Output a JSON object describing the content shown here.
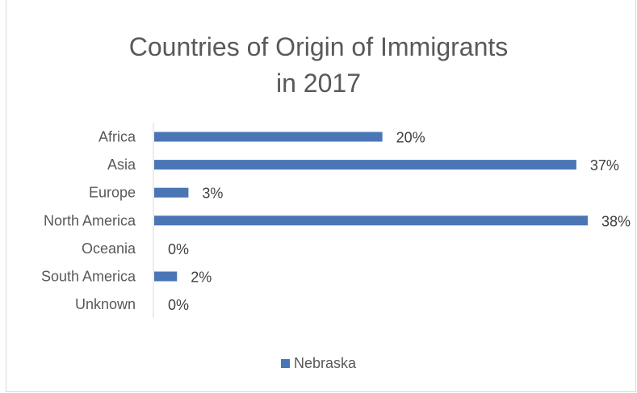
{
  "chart_data": {
    "type": "bar",
    "orientation": "horizontal",
    "title_lines": [
      "Countries of Origin of Immigrants",
      "in 2017"
    ],
    "categories": [
      "Africa",
      "Asia",
      "Europe",
      "North America",
      "Oceania",
      "South America",
      "Unknown"
    ],
    "series": [
      {
        "name": "Nebraska",
        "values": [
          20,
          37,
          3,
          38,
          0,
          2,
          0
        ],
        "labels": [
          "20%",
          "37%",
          "3%",
          "38%",
          "0%",
          "2%",
          "0%"
        ],
        "color": "#4a76b5"
      }
    ],
    "xlim": [
      0,
      38
    ],
    "grid": false,
    "legend_position": "bottom"
  }
}
